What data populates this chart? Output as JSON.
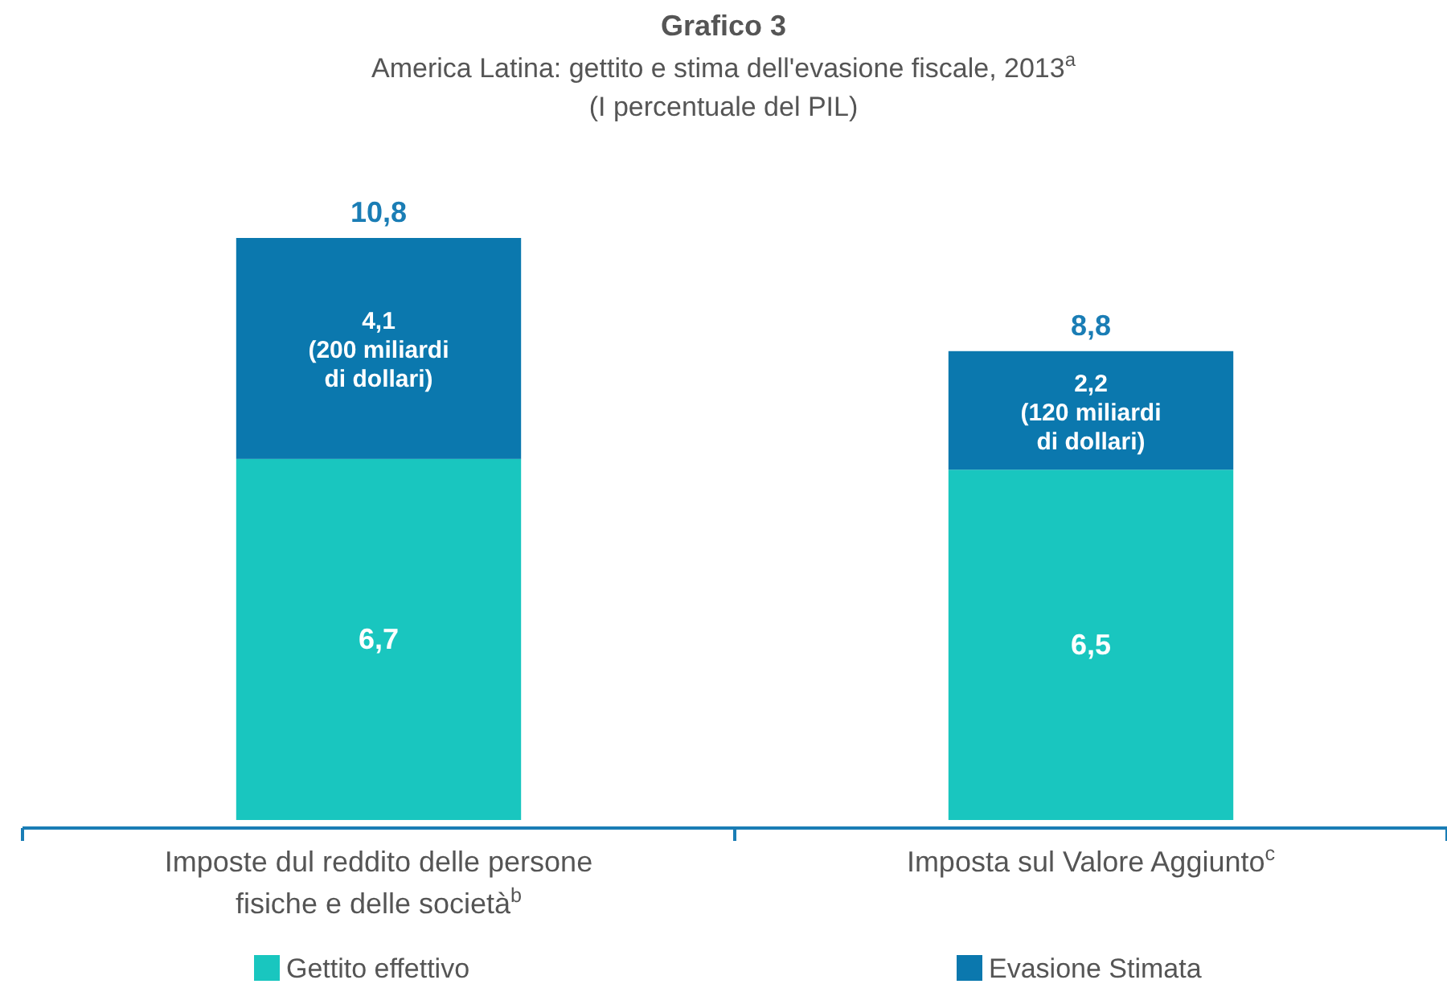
{
  "chart_data": {
    "type": "bar",
    "title": "Grafico 3",
    "subtitle": "America Latina: gettito e stima dell'evasione fiscale, 2013$^{a}$\n(I percentuale del PIL)",
    "categories": [
      "Imposte dul reddito delle persone\nfisiche e delle società$^{b}$",
      "Imposta sul Valore Aggiunto$^{c}$"
    ],
    "stacked": true,
    "legend": "bottom",
    "series": [
      {
        "name": "Gettito effettivo",
        "color": "#19c6bf",
        "values": [
          6.7,
          6.5
        ],
        "value_labels": [
          "6,7",
          "6,5"
        ]
      },
      {
        "name": "Evasione Stimata",
        "color": "#0b78ae",
        "values": [
          4.1,
          2.2
        ],
        "value_labels": [
          "4,1\n(200 miliardi\ndi dollari)",
          "2,2\n(120 miliardi\ndi dollari)"
        ]
      }
    ],
    "totals": [
      "10,8",
      "8,8"
    ]
  }
}
